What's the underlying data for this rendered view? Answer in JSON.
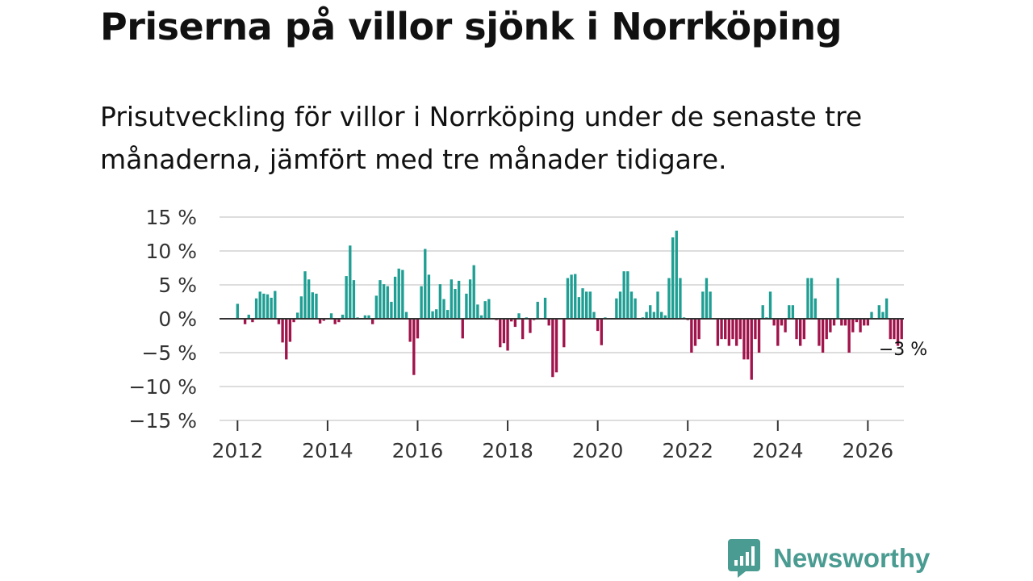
{
  "chart_data": {
    "type": "bar",
    "title": "Priserna på villor sjönk i Norrköping",
    "subtitle": "Prisutveckling för villor i Norrköping under de senaste tre månaderna, jämfört med tre månader tidigare.",
    "start": "2012-01",
    "xlim": [
      2011.6,
      2026.8
    ],
    "ylim": [
      -15,
      15
    ],
    "yticks": [
      15,
      10,
      5,
      0,
      -5,
      -10,
      -15
    ],
    "ytick_labels": [
      "15 %",
      "10 %",
      "5 %",
      "0 %",
      "−5 %",
      "−10 %",
      "−15 %"
    ],
    "xticks": [
      2012,
      2014,
      2016,
      2018,
      2020,
      2022,
      2024,
      2026
    ],
    "xtick_labels": [
      "2012",
      "2014",
      "2016",
      "2018",
      "2020",
      "2022",
      "2024",
      "2026"
    ],
    "positive_color": "#1f9e93",
    "negative_color": "#a0134b",
    "values": [
      2.2,
      0,
      -0.8,
      0.6,
      -0.5,
      3.0,
      4.0,
      3.7,
      3.6,
      3.1,
      4.1,
      -0.8,
      -3.5,
      -6.0,
      -3.4,
      -0.5,
      0.9,
      3.3,
      7.0,
      5.8,
      3.9,
      3.7,
      -0.7,
      -0.3,
      0,
      0.8,
      -0.8,
      -0.5,
      0.6,
      6.3,
      10.8,
      5.7,
      0.2,
      0,
      0.5,
      0.5,
      -0.8,
      3.4,
      5.7,
      5.1,
      4.8,
      2.5,
      6.2,
      7.4,
      7.2,
      1.0,
      -3.4,
      -8.3,
      -2.9,
      4.8,
      10.3,
      6.5,
      1.1,
      1.4,
      5.1,
      2.9,
      1.3,
      5.8,
      4.4,
      5.6,
      -2.9,
      3.7,
      5.8,
      7.9,
      2.1,
      0.5,
      2.6,
      2.9,
      0.1,
      -0.2,
      -4.2,
      -3.6,
      -4.7,
      -0.4,
      -1.2,
      0.8,
      -3.0,
      0.2,
      -2.1,
      -0.2,
      2.5,
      0,
      3.1,
      -1.0,
      -8.6,
      -7.9,
      0,
      -4.2,
      6.0,
      6.5,
      6.6,
      3.2,
      4.5,
      4.0,
      4.0,
      1.0,
      -1.8,
      -3.9,
      0.2,
      0,
      0,
      3.0,
      4.0,
      7.0,
      7.0,
      4.0,
      3.0,
      0,
      0.2,
      1.0,
      2.0,
      1.0,
      4.0,
      1.0,
      0.5,
      6.0,
      12.0,
      13.0,
      6.0,
      0.2,
      -0.2,
      -5.0,
      -4.0,
      -3.0,
      4.0,
      6.0,
      4.0,
      0,
      -4.0,
      -3.0,
      -3.0,
      -4.0,
      -3.0,
      -4.0,
      -3.0,
      -6.0,
      -6.0,
      -9.0,
      -3.0,
      -5.0,
      2.0,
      0.2,
      4.0,
      -1.0,
      -4.0,
      -1.0,
      -2.0,
      2.0,
      2.0,
      -3.0,
      -4.0,
      -3.0,
      6.0,
      6.0,
      3.0,
      -4.0,
      -5.0,
      -3.0,
      -2.0,
      -1.0,
      6.0,
      -1.0,
      -1.0,
      -5.0,
      -2.0,
      -0.5,
      -2.0,
      -1.0,
      -1.0,
      1.0,
      0,
      2.0,
      1.0,
      3.0,
      -3.0,
      -3.0,
      -4.0,
      -3.0
    ],
    "annotation": {
      "text": "−3 %",
      "value": -3
    }
  },
  "logo": {
    "text": "Newsworthy",
    "color": "#4a9b91"
  }
}
